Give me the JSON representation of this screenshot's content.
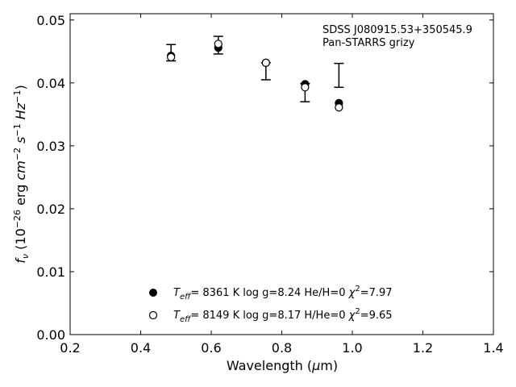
{
  "chart_data": {
    "type": "scatter",
    "annotation": [
      "SDSS J080915.53+350545.9",
      "Pan-STARRS grizy"
    ],
    "xlabel": {
      "main": "Wavelength (",
      "mu": "μ",
      "rest": "m)"
    },
    "ylabel": {
      "f": "f",
      "sub": "ν",
      "text": " (10",
      "sup1": "−26",
      "text2": " erg ",
      "cm": "cm",
      "sup2": "−2",
      "s": " s",
      "sup3": "−1",
      "hz": " Hz",
      "sup4": "−1",
      "close": ")"
    },
    "xlim": [
      0.2,
      1.4
    ],
    "ylim": [
      0.0,
      0.051
    ],
    "xticks": [
      0.2,
      0.4,
      0.6,
      0.8,
      1.0,
      1.2,
      1.4
    ],
    "xtick_labels": [
      "0.2",
      "0.4",
      "0.6",
      "0.8",
      "1.0",
      "1.2",
      "1.4"
    ],
    "yticks": [
      0.0,
      0.01,
      0.02,
      0.03,
      0.04,
      0.05
    ],
    "ytick_labels": [
      "0.00",
      "0.01",
      "0.02",
      "0.03",
      "0.04",
      "0.05"
    ],
    "observed": {
      "x": [
        0.486,
        0.62,
        0.755,
        0.866,
        0.962
      ],
      "y": [
        0.0449,
        0.046,
        0.0423,
        0.0384,
        0.0413
      ],
      "yerr_low": [
        0.0014,
        0.0014,
        0.0018,
        0.0014,
        0.002
      ],
      "yerr_high": [
        0.0012,
        0.0014,
        0.0009,
        0.0015,
        0.0018
      ]
    },
    "series": [
      {
        "name": "He/H=0",
        "marker": "filled-circle",
        "x": [
          0.486,
          0.62,
          0.755,
          0.866,
          0.962
        ],
        "y": [
          0.0443,
          0.0456,
          0.0432,
          0.0398,
          0.0368
        ],
        "legend": {
          "teff_t": "T",
          "teff_sub": "eff",
          "rest": "=  8361 K  log g=8.24  He/H=0  ",
          "chi": "χ",
          "chi_sup": "2",
          "chi_val": "=7.97"
        }
      },
      {
        "name": "H/He=0",
        "marker": "open-circle",
        "x": [
          0.486,
          0.62,
          0.755,
          0.866,
          0.962
        ],
        "y": [
          0.0441,
          0.0462,
          0.0432,
          0.0393,
          0.0361
        ],
        "legend": {
          "teff_t": "T",
          "teff_sub": "eff",
          "rest": "=  8149 K  log g=8.17  H/He=0  ",
          "chi": "χ",
          "chi_sup": "2",
          "chi_val": "=9.65"
        }
      }
    ],
    "legend_position": "lower-center",
    "grid": false
  }
}
